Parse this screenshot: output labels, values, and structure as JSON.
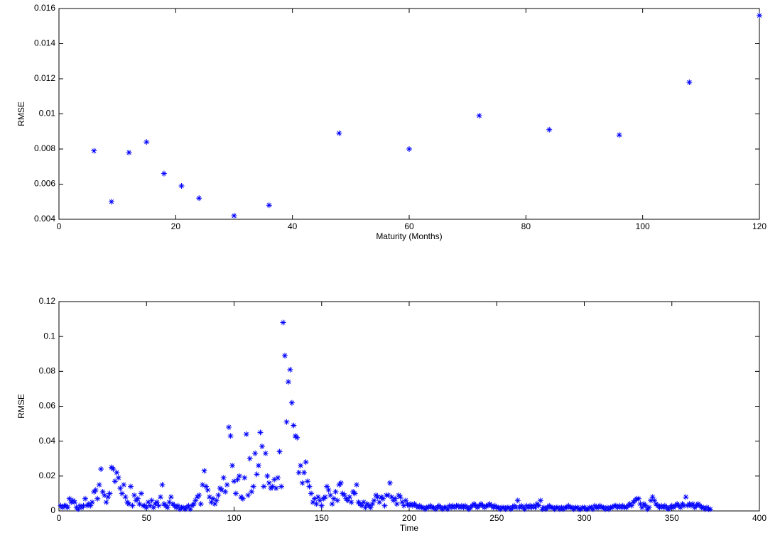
{
  "chart_data": [
    {
      "type": "scatter",
      "xlabel": "Maturity (Months)",
      "ylabel": "RMSE",
      "color": "#0000ff",
      "marker": "*",
      "x": [
        6,
        9,
        12,
        15,
        18,
        21,
        24,
        30,
        36,
        48,
        60,
        72,
        84,
        96,
        108,
        120
      ],
      "values": [
        0.0079,
        0.005,
        0.0078,
        0.0084,
        0.0066,
        0.0059,
        0.0052,
        0.0042,
        0.0048,
        0.0089,
        0.008,
        0.0099,
        0.0091,
        0.0088,
        0.0118,
        0.0156
      ],
      "xlim": [
        0,
        120
      ],
      "xticks": [
        0,
        20,
        40,
        60,
        80,
        100,
        120
      ],
      "ylim": [
        0.004,
        0.016
      ],
      "yticks": [
        0.004,
        0.006,
        0.008,
        0.01,
        0.012,
        0.014,
        0.016
      ],
      "grid": false
    },
    {
      "type": "scatter",
      "xlabel": "Time",
      "ylabel": "RMSE",
      "color": "#0000ff",
      "marker": "*",
      "x": [
        1,
        2,
        3,
        4,
        5,
        6,
        7,
        8,
        9,
        10,
        11,
        12,
        13,
        14,
        15,
        16,
        17,
        18,
        19,
        20,
        21,
        22,
        23,
        24,
        25,
        26,
        27,
        28,
        29,
        30,
        31,
        32,
        33,
        34,
        35,
        36,
        37,
        38,
        39,
        40,
        41,
        42,
        43,
        44,
        45,
        46,
        47,
        48,
        49,
        50,
        51,
        52,
        53,
        54,
        55,
        56,
        57,
        58,
        59,
        60,
        61,
        62,
        63,
        64,
        65,
        66,
        67,
        68,
        69,
        70,
        71,
        72,
        73,
        74,
        75,
        76,
        77,
        78,
        79,
        80,
        81,
        82,
        83,
        84,
        85,
        86,
        87,
        88,
        89,
        90,
        91,
        92,
        93,
        94,
        95,
        96,
        97,
        98,
        99,
        100,
        101,
        102,
        103,
        104,
        105,
        106,
        107,
        108,
        109,
        110,
        111,
        112,
        113,
        114,
        115,
        116,
        117,
        118,
        119,
        120,
        121,
        122,
        123,
        124,
        125,
        126,
        127,
        128,
        129,
        130,
        131,
        132,
        133,
        134,
        135,
        136,
        137,
        138,
        139,
        140,
        141,
        142,
        143,
        144,
        145,
        146,
        147,
        148,
        149,
        150,
        151,
        152,
        153,
        154,
        155,
        156,
        157,
        158,
        159,
        160,
        161,
        162,
        163,
        164,
        165,
        166,
        167,
        168,
        169,
        170,
        171,
        172,
        173,
        174,
        175,
        176,
        177,
        178,
        179,
        180,
        181,
        182,
        183,
        184,
        185,
        186,
        187,
        188,
        189,
        190,
        191,
        192,
        193,
        194,
        195,
        196,
        197,
        198,
        199,
        200,
        201,
        202,
        203,
        204,
        205,
        206,
        207,
        208,
        209,
        210,
        211,
        212,
        213,
        214,
        215,
        216,
        217,
        218,
        219,
        220,
        221,
        222,
        223,
        224,
        225,
        226,
        227,
        228,
        229,
        230,
        231,
        232,
        233,
        234,
        235,
        236,
        237,
        238,
        239,
        240,
        241,
        242,
        243,
        244,
        245,
        246,
        247,
        248,
        249,
        250,
        251,
        252,
        253,
        254,
        255,
        256,
        257,
        258,
        259,
        260,
        261,
        262,
        263,
        264,
        265,
        266,
        267,
        268,
        269,
        270,
        271,
        272,
        273,
        274,
        275,
        276,
        277,
        278,
        279,
        280,
        281,
        282,
        283,
        284,
        285,
        286,
        287,
        288,
        289,
        290,
        291,
        292,
        293,
        294,
        295,
        296,
        297,
        298,
        299,
        300,
        301,
        302,
        303,
        304,
        305,
        306,
        307,
        308,
        309,
        310,
        311,
        312,
        313,
        314,
        315,
        316,
        317,
        318,
        319,
        320,
        321,
        322,
        323,
        324,
        325,
        326,
        327,
        328,
        329,
        330,
        331,
        332,
        333,
        334,
        335,
        336,
        337,
        338,
        339,
        340,
        341,
        342,
        343,
        344,
        345,
        346,
        347,
        348,
        349,
        350,
        351,
        352,
        353,
        354,
        355,
        356,
        357,
        358,
        359,
        360,
        361,
        362,
        363,
        364,
        365,
        366,
        367,
        368,
        369,
        370,
        371,
        372
      ],
      "values": [
        0.003,
        0.002,
        0.003,
        0.003,
        0.002,
        0.007,
        0.005,
        0.006,
        0.005,
        0.002,
        0.001,
        0.003,
        0.002,
        0.003,
        0.007,
        0.003,
        0.004,
        0.003,
        0.005,
        0.011,
        0.012,
        0.007,
        0.015,
        0.024,
        0.011,
        0.009,
        0.005,
        0.008,
        0.01,
        0.025,
        0.024,
        0.017,
        0.022,
        0.019,
        0.013,
        0.01,
        0.015,
        0.008,
        0.005,
        0.004,
        0.014,
        0.003,
        0.009,
        0.006,
        0.007,
        0.004,
        0.01,
        0.003,
        0.003,
        0.002,
        0.005,
        0.003,
        0.006,
        0.002,
        0.004,
        0.005,
        0.003,
        0.008,
        0.015,
        0.004,
        0.003,
        0.002,
        0.005,
        0.008,
        0.004,
        0.003,
        0.002,
        0.003,
        0.001,
        0.002,
        0.002,
        0.001,
        0.002,
        0.003,
        0.001,
        0.003,
        0.004,
        0.006,
        0.008,
        0.009,
        0.004,
        0.015,
        0.023,
        0.014,
        0.012,
        0.008,
        0.005,
        0.007,
        0.004,
        0.006,
        0.009,
        0.013,
        0.012,
        0.019,
        0.011,
        0.015,
        0.048,
        0.043,
        0.026,
        0.017,
        0.01,
        0.018,
        0.02,
        0.008,
        0.007,
        0.019,
        0.044,
        0.009,
        0.03,
        0.011,
        0.014,
        0.033,
        0.021,
        0.026,
        0.045,
        0.037,
        0.014,
        0.033,
        0.02,
        0.016,
        0.013,
        0.014,
        0.018,
        0.013,
        0.019,
        0.034,
        0.014,
        0.108,
        0.089,
        0.051,
        0.074,
        0.081,
        0.062,
        0.049,
        0.043,
        0.042,
        0.022,
        0.026,
        0.016,
        0.022,
        0.028,
        0.017,
        0.014,
        0.01,
        0.005,
        0.007,
        0.004,
        0.008,
        0.006,
        0.003,
        0.007,
        0.008,
        0.014,
        0.012,
        0.009,
        0.004,
        0.007,
        0.011,
        0.006,
        0.015,
        0.016,
        0.01,
        0.009,
        0.007,
        0.006,
        0.008,
        0.005,
        0.011,
        0.01,
        0.015,
        0.005,
        0.004,
        0.003,
        0.005,
        0.002,
        0.004,
        0.003,
        0.002,
        0.004,
        0.006,
        0.009,
        0.008,
        0.005,
        0.008,
        0.007,
        0.003,
        0.009,
        0.009,
        0.016,
        0.008,
        0.006,
        0.007,
        0.004,
        0.009,
        0.008,
        0.005,
        0.003,
        0.006,
        0.004,
        0.003,
        0.004,
        0.003,
        0.004,
        0.003,
        0.002,
        0.003,
        0.002,
        0.002,
        0.001,
        0.002,
        0.002,
        0.003,
        0.002,
        0.002,
        0.001,
        0.002,
        0.003,
        0.002,
        0.001,
        0.002,
        0.002,
        0.001,
        0.003,
        0.002,
        0.003,
        0.002,
        0.003,
        0.003,
        0.002,
        0.003,
        0.002,
        0.003,
        0.002,
        0.001,
        0.002,
        0.003,
        0.004,
        0.003,
        0.002,
        0.003,
        0.004,
        0.003,
        0.002,
        0.003,
        0.003,
        0.004,
        0.003,
        0.002,
        0.003,
        0.002,
        0.002,
        0.001,
        0.002,
        0.002,
        0.001,
        0.002,
        0.002,
        0.001,
        0.002,
        0.003,
        0.002,
        0.006,
        0.002,
        0.003,
        0.002,
        0.001,
        0.003,
        0.002,
        0.003,
        0.002,
        0.003,
        0.002,
        0.004,
        0.003,
        0.006,
        0.001,
        0.002,
        0.001,
        0.002,
        0.003,
        0.002,
        0.002,
        0.001,
        0.002,
        0.002,
        0.001,
        0.002,
        0.001,
        0.002,
        0.002,
        0.003,
        0.002,
        0.002,
        0.001,
        0.002,
        0.002,
        0.001,
        0.001,
        0.002,
        0.002,
        0.001,
        0.001,
        0.002,
        0.002,
        0.001,
        0.003,
        0.002,
        0.002,
        0.003,
        0.002,
        0.002,
        0.001,
        0.002,
        0.001,
        0.002,
        0.002,
        0.003,
        0.003,
        0.002,
        0.003,
        0.002,
        0.003,
        0.002,
        0.002,
        0.003,
        0.004,
        0.003,
        0.005,
        0.006,
        0.007,
        0.007,
        0.004,
        0.002,
        0.004,
        0.003,
        0.001,
        0.002,
        0.006,
        0.008,
        0.006,
        0.004,
        0.003,
        0.002,
        0.003,
        0.002,
        0.003,
        0.002,
        0.001,
        0.002,
        0.003,
        0.002,
        0.003,
        0.004,
        0.003,
        0.002,
        0.004,
        0.003,
        0.008,
        0.003,
        0.004,
        0.003,
        0.004,
        0.002,
        0.003,
        0.004,
        0.003,
        0.002,
        0.002,
        0.001,
        0.002,
        0.001,
        0.001
      ],
      "xlim": [
        0,
        400
      ],
      "xticks": [
        0,
        50,
        100,
        150,
        200,
        250,
        300,
        350,
        400
      ],
      "ylim": [
        0,
        0.12
      ],
      "yticks": [
        0,
        0.02,
        0.04,
        0.06,
        0.08,
        0.1,
        0.12
      ],
      "grid": false
    }
  ]
}
